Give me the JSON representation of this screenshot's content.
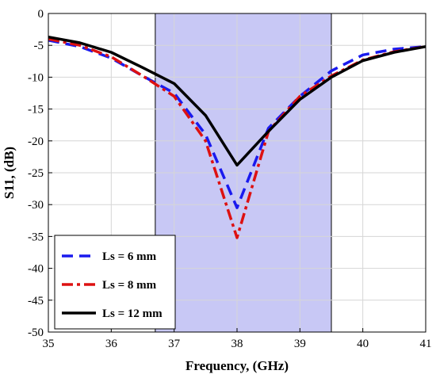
{
  "chart_data": {
    "type": "line",
    "title": "",
    "xlabel": "Frequency, (GHz)",
    "ylabel": "S11, (dB)",
    "xlim": [
      35,
      41
    ],
    "ylim": [
      -50,
      0
    ],
    "xticks": [
      35,
      36,
      37,
      38,
      39,
      40,
      41
    ],
    "yticks": [
      0,
      -5,
      -10,
      -15,
      -20,
      -25,
      -30,
      -35,
      -40,
      -45,
      -50
    ],
    "grid": true,
    "legend_position": "bottom-left",
    "shaded_band": {
      "x_start": 36.7,
      "x_end": 39.5,
      "color": "#c8c8f5"
    },
    "series": [
      {
        "name": "Ls = 6 mm",
        "color": "#1a1aee",
        "style": "dashed",
        "x": [
          35,
          35.5,
          36,
          36.5,
          37,
          37.5,
          38,
          38.5,
          39,
          39.5,
          40,
          40.5,
          41
        ],
        "y": [
          -4.2,
          -5.2,
          -7,
          -9.8,
          -12.5,
          -19,
          -30.5,
          -18,
          -13,
          -9,
          -6.5,
          -5.6,
          -5.2
        ]
      },
      {
        "name": "Ls = 8 mm",
        "color": "#dd1111",
        "style": "dashdot",
        "x": [
          35,
          35.5,
          36,
          36.5,
          37,
          37.5,
          38,
          38.5,
          39,
          39.5,
          40,
          40.5,
          41
        ],
        "y": [
          -4,
          -5,
          -6.8,
          -9.8,
          -13,
          -20,
          -35.2,
          -18.5,
          -13,
          -9.8,
          -7.3,
          -6,
          -5.2
        ]
      },
      {
        "name": "Ls = 12 mm",
        "color": "#000000",
        "style": "solid",
        "x": [
          35,
          35.5,
          36,
          36.5,
          37,
          37.5,
          38,
          38.5,
          39,
          39.5,
          40,
          40.5,
          41
        ],
        "y": [
          -3.7,
          -4.6,
          -6.1,
          -8.5,
          -11,
          -16,
          -23.8,
          -18.5,
          -13.5,
          -10,
          -7.4,
          -6.1,
          -5.2
        ]
      }
    ]
  }
}
